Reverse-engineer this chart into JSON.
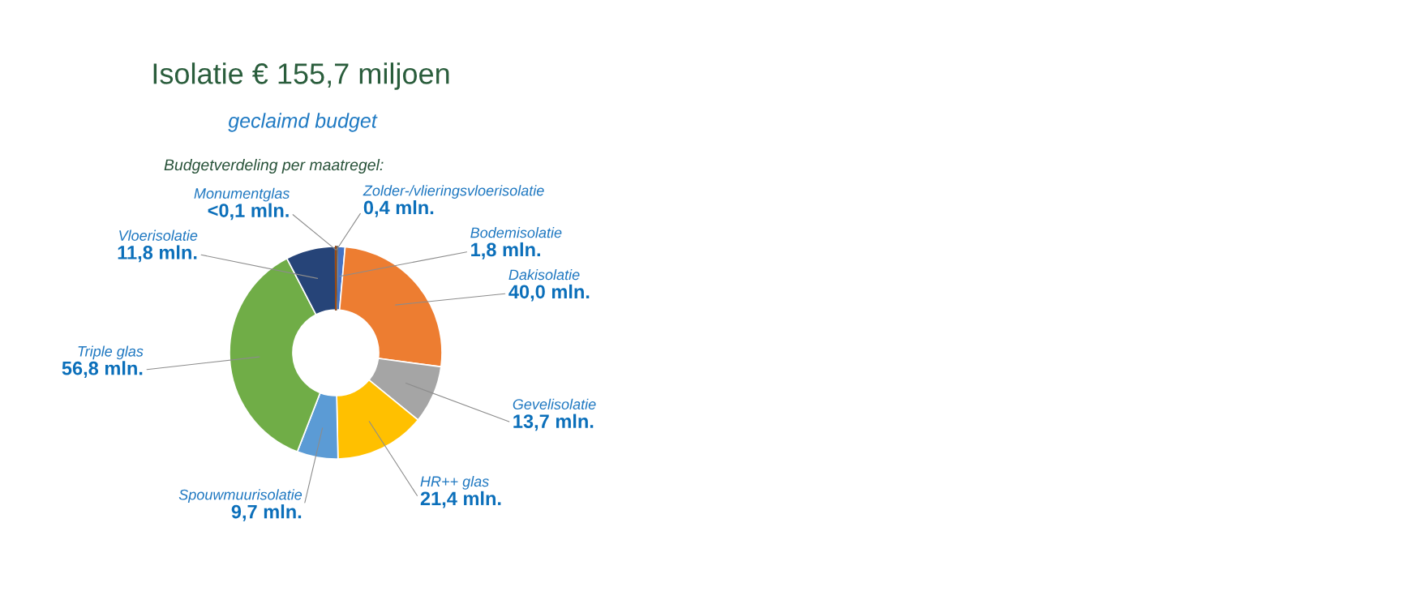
{
  "chart_data": {
    "type": "donut",
    "title": "Isolatie € 155,7 miljoen",
    "subtitle": "geclaimd budget",
    "annotations": [
      "Budgetverdeling per maatregel:"
    ],
    "categories": [
      "Zolder-/vlieringsvloerisolatie",
      "Bodemisolatie",
      "Dakisolatie",
      "Gevelisolatie",
      "HR++ glas",
      "Spouwmuurisolatie",
      "Triple glas",
      "Vloerisolatie",
      "Monumentglas"
    ],
    "values": [
      0.4,
      1.8,
      40.0,
      13.7,
      21.4,
      9.7,
      56.8,
      11.8,
      0.05
    ],
    "colors": [
      "#636363",
      "#4472c4",
      "#ed7d31",
      "#a5a5a5",
      "#ffc000",
      "#5b9bd5",
      "#70ad47",
      "#264478",
      "#9e480e"
    ],
    "value_labels": [
      "0,4 mln.",
      "1,8 mln.",
      "40,0 mln.",
      "13,7 mln.",
      "21,4 mln.",
      "9,7 mln.",
      "56,8 mln.",
      "11,8 mln.",
      "<0,1 mln."
    ]
  }
}
